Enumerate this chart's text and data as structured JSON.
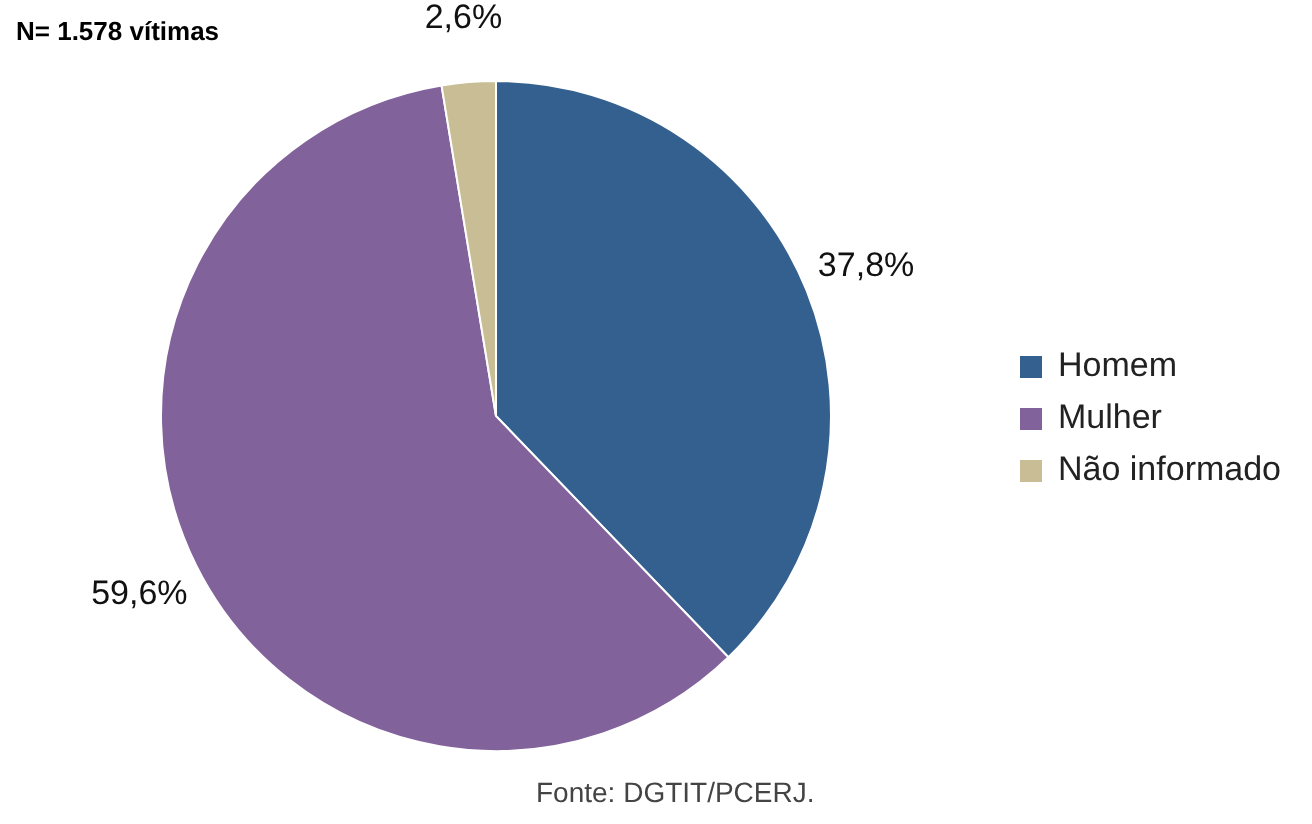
{
  "chart_data": {
    "type": "pie",
    "categories": [
      "Homem",
      "Mulher",
      "Não informado"
    ],
    "values": [
      37.8,
      59.6,
      2.6
    ],
    "colors": [
      "#34608f",
      "#82629b",
      "#c8bd94"
    ],
    "value_labels": [
      "37,8%",
      "59,6%",
      "2,6%"
    ],
    "legend": "right",
    "annotations": [
      "N= 1.578 vítimas",
      "Fonte: DGTIT/PCERJ."
    ]
  }
}
